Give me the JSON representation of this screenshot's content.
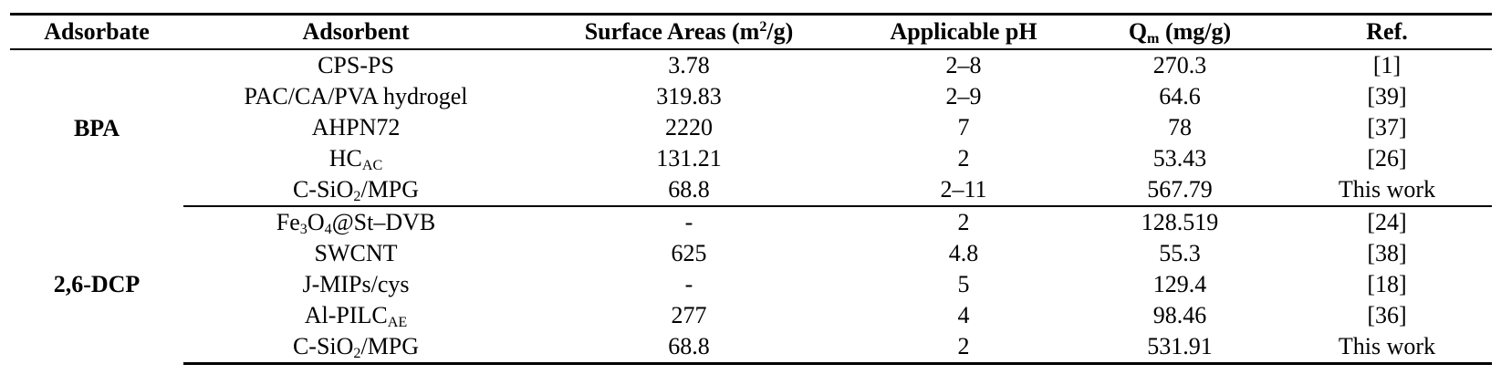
{
  "headers": {
    "adsorbate": "Adsorbate",
    "adsorbent": "Adsorbent",
    "surface_areas": "Surface Areas (m",
    "surface_areas_sup": "2",
    "surface_areas_end": "/g)",
    "applicable_ph": "Applicable pH",
    "qm": "Q",
    "qm_sub": "m",
    "qm_end": " (mg/g)",
    "ref": "Ref."
  },
  "groups": [
    {
      "adsorbate": "BPA",
      "rows": [
        {
          "adsorbent": "CPS-PS",
          "surface_area": "3.78",
          "ph": "2–8",
          "qm": "270.3",
          "ref": "[1]"
        },
        {
          "adsorbent": "PAC/CA/PVA hydrogel",
          "surface_area": "319.83",
          "ph": "2–9",
          "qm": "64.6",
          "ref": "[39]"
        },
        {
          "adsorbent": "AHPN72",
          "surface_area": "2220",
          "ph": "7",
          "qm": "78",
          "ref": "[37]"
        },
        {
          "adsorbent": "HC",
          "adsorbent_sub": "AC",
          "surface_area": "131.21",
          "ph": "2",
          "qm": "53.43",
          "ref": "[26]"
        },
        {
          "adsorbent": "C-SiO",
          "adsorbent_sub": "2",
          "adsorbent_end": "/MPG",
          "surface_area": "68.8",
          "ph": "2–11",
          "qm": "567.79",
          "ref": "This work"
        }
      ]
    },
    {
      "adsorbate": "2,6-DCP",
      "rows": [
        {
          "adsorbent_a": "Fe",
          "adsorbent_sub_a": "3",
          "adsorbent_b": "O",
          "adsorbent_sub_b": "4",
          "adsorbent_c": "@St–DVB",
          "surface_area": "-",
          "ph": "2",
          "qm": "128.519",
          "ref": "[24]"
        },
        {
          "adsorbent": "SWCNT",
          "surface_area": "625",
          "ph": "4.8",
          "qm": "55.3",
          "ref": "[38]"
        },
        {
          "adsorbent": "J-MIPs/cys",
          "surface_area": "-",
          "ph": "5",
          "qm": "129.4",
          "ref": "[18]"
        },
        {
          "adsorbent": "Al-PILC",
          "adsorbent_sub": "AE",
          "surface_area": "277",
          "ph": "4",
          "qm": "98.46",
          "ref": "[36]"
        },
        {
          "adsorbent": "C-SiO",
          "adsorbent_sub": "2",
          "adsorbent_end": "/MPG",
          "surface_area": "68.8",
          "ph": "2",
          "qm": "531.91",
          "ref": "This work"
        }
      ]
    }
  ]
}
